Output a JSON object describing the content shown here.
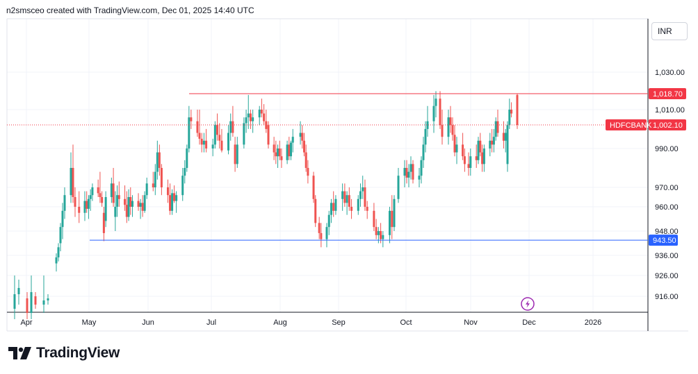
{
  "header": {
    "text": "n2smsceo created with TradingView.com, Dec 01, 2025 14:40 UTC"
  },
  "currency": "INR",
  "logo_text": "TradingView",
  "colors": {
    "up": "#26a69a",
    "down": "#ef5350",
    "resistance": "#f23645",
    "support": "#2962ff",
    "last_price": "#f23645",
    "grid": "#f0f3fa",
    "axis": "#131722"
  },
  "chart_data": {
    "type": "candlestick",
    "symbol": "HDFCBANK",
    "x_ticks": [
      "Apr",
      "May",
      "Jun",
      "Jul",
      "Aug",
      "Sep",
      "Oct",
      "Nov",
      "Dec",
      "2026"
    ],
    "y_ticks": [
      "1,030.00",
      "1,010.00",
      "990.00",
      "970.00",
      "960.00",
      "948.00",
      "936.00",
      "926.00",
      "916.00"
    ],
    "resistance": {
      "value": 1018.7,
      "label": "1,018.70"
    },
    "support": {
      "value": 943.5,
      "label": "943.50"
    },
    "last_price": {
      "value": 1002.1,
      "label": "1,002.10",
      "symbol_label": "HDFCBANK"
    },
    "candles": [
      {
        "t": "Apr 01",
        "o": 910,
        "h": 926,
        "l": 905,
        "c": 917
      },
      {
        "t": "Apr 03",
        "o": 917,
        "h": 924,
        "l": 912,
        "c": 920
      },
      {
        "t": "Apr 07",
        "o": 915,
        "h": 918,
        "l": 905,
        "c": 908
      },
      {
        "t": "Apr 09",
        "o": 908,
        "h": 926,
        "l": 905,
        "c": 918
      },
      {
        "t": "Apr 11",
        "o": 916,
        "h": 918,
        "l": 910,
        "c": 912
      },
      {
        "t": "Apr 15",
        "o": 912,
        "h": 926,
        "l": 908,
        "c": 914
      },
      {
        "t": "Apr 17",
        "o": 914,
        "h": 917,
        "l": 912,
        "c": 915
      },
      {
        "t": "Apr 21",
        "o": 932,
        "h": 937,
        "l": 928,
        "c": 935
      },
      {
        "t": "Apr 22",
        "o": 935,
        "h": 942,
        "l": 933,
        "c": 940
      },
      {
        "t": "Apr 23",
        "o": 942,
        "h": 952,
        "l": 938,
        "c": 950
      },
      {
        "t": "Apr 24",
        "o": 950,
        "h": 962,
        "l": 944,
        "c": 958
      },
      {
        "t": "Apr 25",
        "o": 958,
        "h": 970,
        "l": 954,
        "c": 966
      },
      {
        "t": "Apr 28",
        "o": 966,
        "h": 988,
        "l": 962,
        "c": 980
      },
      {
        "t": "Apr 29",
        "o": 980,
        "h": 992,
        "l": 962,
        "c": 965
      },
      {
        "t": "Apr 30",
        "o": 965,
        "h": 970,
        "l": 955,
        "c": 960
      },
      {
        "t": "May 02",
        "o": 960,
        "h": 968,
        "l": 952,
        "c": 957
      },
      {
        "t": "May 05",
        "o": 957,
        "h": 968,
        "l": 953,
        "c": 963
      },
      {
        "t": "May 06",
        "o": 963,
        "h": 968,
        "l": 957,
        "c": 959
      },
      {
        "t": "May 07",
        "o": 959,
        "h": 966,
        "l": 954,
        "c": 964
      },
      {
        "t": "May 08",
        "o": 964,
        "h": 969,
        "l": 958,
        "c": 966
      },
      {
        "t": "May 09",
        "o": 966,
        "h": 972,
        "l": 963,
        "c": 970
      },
      {
        "t": "May 12",
        "o": 970,
        "h": 974,
        "l": 965,
        "c": 967
      },
      {
        "t": "May 13",
        "o": 967,
        "h": 978,
        "l": 962,
        "c": 965
      },
      {
        "t": "May 14",
        "o": 965,
        "h": 968,
        "l": 960,
        "c": 962
      },
      {
        "t": "May 15",
        "o": 957,
        "h": 960,
        "l": 943,
        "c": 947
      },
      {
        "t": "May 16",
        "o": 953,
        "h": 968,
        "l": 950,
        "c": 965
      },
      {
        "t": "May 19",
        "o": 965,
        "h": 975,
        "l": 962,
        "c": 972
      },
      {
        "t": "May 20",
        "o": 972,
        "h": 980,
        "l": 960,
        "c": 962
      },
      {
        "t": "May 21",
        "o": 955,
        "h": 968,
        "l": 948,
        "c": 960
      },
      {
        "t": "May 22",
        "o": 960,
        "h": 971,
        "l": 955,
        "c": 966
      },
      {
        "t": "May 23",
        "o": 966,
        "h": 973,
        "l": 960,
        "c": 964
      },
      {
        "t": "May 26",
        "o": 964,
        "h": 971,
        "l": 958,
        "c": 961
      },
      {
        "t": "May 27",
        "o": 961,
        "h": 968,
        "l": 952,
        "c": 955
      },
      {
        "t": "May 28",
        "o": 955,
        "h": 969,
        "l": 953,
        "c": 965
      },
      {
        "t": "May 29",
        "o": 965,
        "h": 970,
        "l": 956,
        "c": 960
      },
      {
        "t": "May 30",
        "o": 960,
        "h": 966,
        "l": 955,
        "c": 963
      },
      {
        "t": "Jun 02",
        "o": 963,
        "h": 967,
        "l": 958,
        "c": 960
      },
      {
        "t": "Jun 03",
        "o": 960,
        "h": 964,
        "l": 954,
        "c": 962
      },
      {
        "t": "Jun 04",
        "o": 962,
        "h": 966,
        "l": 955,
        "c": 958
      },
      {
        "t": "Jun 05",
        "o": 958,
        "h": 968,
        "l": 957,
        "c": 966
      },
      {
        "t": "Jun 06",
        "o": 966,
        "h": 975,
        "l": 964,
        "c": 972
      },
      {
        "t": "Jun 09",
        "o": 972,
        "h": 978,
        "l": 968,
        "c": 970
      },
      {
        "t": "Jun 10",
        "o": 970,
        "h": 982,
        "l": 966,
        "c": 978
      },
      {
        "t": "Jun 11",
        "o": 978,
        "h": 994,
        "l": 974,
        "c": 988
      },
      {
        "t": "Jun 12",
        "o": 988,
        "h": 992,
        "l": 976,
        "c": 980
      },
      {
        "t": "Jun 13",
        "o": 980,
        "h": 982,
        "l": 966,
        "c": 970
      },
      {
        "t": "Jun 16",
        "o": 970,
        "h": 974,
        "l": 962,
        "c": 966
      },
      {
        "t": "Jun 17",
        "o": 966,
        "h": 972,
        "l": 956,
        "c": 958
      },
      {
        "t": "Jun 18",
        "o": 958,
        "h": 969,
        "l": 956,
        "c": 967
      },
      {
        "t": "Jun 19",
        "o": 967,
        "h": 971,
        "l": 962,
        "c": 963
      },
      {
        "t": "Jun 20",
        "o": 963,
        "h": 968,
        "l": 957,
        "c": 966
      },
      {
        "t": "Jun 23",
        "o": 966,
        "h": 980,
        "l": 963,
        "c": 976
      },
      {
        "t": "Jun 24",
        "o": 976,
        "h": 984,
        "l": 972,
        "c": 980
      },
      {
        "t": "Jun 25",
        "o": 980,
        "h": 992,
        "l": 978,
        "c": 990
      },
      {
        "t": "Jun 26",
        "o": 990,
        "h": 1012,
        "l": 988,
        "c": 1006
      },
      {
        "t": "Jun 27",
        "o": 1006,
        "h": 1010,
        "l": 1000,
        "c": 1004
      },
      {
        "t": "Jun 30",
        "o": 1004,
        "h": 1010,
        "l": 996,
        "c": 998
      },
      {
        "t": "Jul 01",
        "o": 998,
        "h": 1010,
        "l": 992,
        "c": 995
      },
      {
        "t": "Jul 02",
        "o": 995,
        "h": 998,
        "l": 988,
        "c": 992
      },
      {
        "t": "Jul 03",
        "o": 992,
        "h": 998,
        "l": 988,
        "c": 994
      },
      {
        "t": "Jul 04",
        "o": 994,
        "h": 1000,
        "l": 988,
        "c": 990
      },
      {
        "t": "Jul 07",
        "o": 990,
        "h": 995,
        "l": 986,
        "c": 992
      },
      {
        "t": "Jul 08",
        "o": 992,
        "h": 1004,
        "l": 990,
        "c": 1002
      },
      {
        "t": "Jul 09",
        "o": 1002,
        "h": 1008,
        "l": 994,
        "c": 997
      },
      {
        "t": "Jul 10",
        "o": 997,
        "h": 1003,
        "l": 990,
        "c": 994
      },
      {
        "t": "Jul 11",
        "o": 994,
        "h": 1000,
        "l": 988,
        "c": 989
      },
      {
        "t": "Jul 14",
        "o": 989,
        "h": 1002,
        "l": 987,
        "c": 998
      },
      {
        "t": "Jul 15",
        "o": 998,
        "h": 1008,
        "l": 994,
        "c": 1004
      },
      {
        "t": "Jul 16",
        "o": 1004,
        "h": 1012,
        "l": 996,
        "c": 998
      },
      {
        "t": "Jul 17",
        "o": 992,
        "h": 996,
        "l": 978,
        "c": 982
      },
      {
        "t": "Jul 18",
        "o": 982,
        "h": 996,
        "l": 980,
        "c": 992
      },
      {
        "t": "Jul 21",
        "o": 992,
        "h": 1006,
        "l": 990,
        "c": 1003
      },
      {
        "t": "Jul 22",
        "o": 1003,
        "h": 1010,
        "l": 998,
        "c": 1006
      },
      {
        "t": "Jul 23",
        "o": 1006,
        "h": 1018,
        "l": 1000,
        "c": 1008
      },
      {
        "t": "Jul 24",
        "o": 1008,
        "h": 1010,
        "l": 1000,
        "c": 1004
      },
      {
        "t": "Jul 25",
        "o": 1004,
        "h": 1010,
        "l": 998,
        "c": 1006
      },
      {
        "t": "Jul 28",
        "o": 1006,
        "h": 1012,
        "l": 1002,
        "c": 1010
      },
      {
        "t": "Jul 29",
        "o": 1010,
        "h": 1016,
        "l": 1006,
        "c": 1008
      },
      {
        "t": "Jul 30",
        "o": 1008,
        "h": 1013,
        "l": 1002,
        "c": 1004
      },
      {
        "t": "Jul 31",
        "o": 1004,
        "h": 1010,
        "l": 998,
        "c": 1000
      },
      {
        "t": "Aug 01",
        "o": 1002,
        "h": 1004,
        "l": 990,
        "c": 992
      },
      {
        "t": "Aug 04",
        "o": 992,
        "h": 996,
        "l": 984,
        "c": 988
      },
      {
        "t": "Aug 05",
        "o": 988,
        "h": 994,
        "l": 982,
        "c": 986
      },
      {
        "t": "Aug 06",
        "o": 986,
        "h": 992,
        "l": 980,
        "c": 990
      },
      {
        "t": "Aug 07",
        "o": 990,
        "h": 994,
        "l": 984,
        "c": 986
      },
      {
        "t": "Aug 08",
        "o": 986,
        "h": 990,
        "l": 980,
        "c": 984
      },
      {
        "t": "Aug 11",
        "o": 984,
        "h": 994,
        "l": 982,
        "c": 992
      },
      {
        "t": "Aug 12",
        "o": 992,
        "h": 996,
        "l": 984,
        "c": 986
      },
      {
        "t": "Aug 13",
        "o": 986,
        "h": 994,
        "l": 984,
        "c": 993
      },
      {
        "t": "Aug 14",
        "o": 993,
        "h": 1000,
        "l": 988,
        "c": 996
      },
      {
        "t": "Aug 18",
        "o": 996,
        "h": 1004,
        "l": 992,
        "c": 998
      },
      {
        "t": "Aug 19",
        "o": 998,
        "h": 1002,
        "l": 990,
        "c": 994
      },
      {
        "t": "Aug 20",
        "o": 994,
        "h": 998,
        "l": 986,
        "c": 988
      },
      {
        "t": "Aug 21",
        "o": 988,
        "h": 992,
        "l": 978,
        "c": 980
      },
      {
        "t": "Aug 22",
        "o": 980,
        "h": 984,
        "l": 972,
        "c": 976
      },
      {
        "t": "Aug 25",
        "o": 976,
        "h": 978,
        "l": 962,
        "c": 964
      },
      {
        "t": "Aug 26",
        "o": 964,
        "h": 966,
        "l": 950,
        "c": 952
      },
      {
        "t": "Aug 28",
        "o": 952,
        "h": 955,
        "l": 944,
        "c": 947
      },
      {
        "t": "Aug 29",
        "o": 947,
        "h": 952,
        "l": 940,
        "c": 944
      },
      {
        "t": "Sep 01",
        "o": 944,
        "h": 952,
        "l": 940,
        "c": 950
      },
      {
        "t": "Sep 02",
        "o": 950,
        "h": 958,
        "l": 946,
        "c": 956
      },
      {
        "t": "Sep 03",
        "o": 956,
        "h": 964,
        "l": 952,
        "c": 962
      },
      {
        "t": "Sep 04",
        "o": 962,
        "h": 968,
        "l": 955,
        "c": 958
      },
      {
        "t": "Sep 05",
        "o": 958,
        "h": 966,
        "l": 956,
        "c": 964
      },
      {
        "t": "Sep 08",
        "o": 964,
        "h": 972,
        "l": 958,
        "c": 968
      },
      {
        "t": "Sep 09",
        "o": 968,
        "h": 972,
        "l": 960,
        "c": 962
      },
      {
        "t": "Sep 10",
        "o": 962,
        "h": 968,
        "l": 956,
        "c": 966
      },
      {
        "t": "Sep 11",
        "o": 966,
        "h": 970,
        "l": 958,
        "c": 960
      },
      {
        "t": "Sep 12",
        "o": 960,
        "h": 964,
        "l": 954,
        "c": 958
      },
      {
        "t": "Sep 15",
        "o": 958,
        "h": 966,
        "l": 956,
        "c": 964
      },
      {
        "t": "Sep 16",
        "o": 964,
        "h": 972,
        "l": 960,
        "c": 968
      },
      {
        "t": "Sep 17",
        "o": 968,
        "h": 976,
        "l": 964,
        "c": 970
      },
      {
        "t": "Sep 18",
        "o": 970,
        "h": 974,
        "l": 958,
        "c": 960
      },
      {
        "t": "Sep 19",
        "o": 960,
        "h": 963,
        "l": 954,
        "c": 958
      },
      {
        "t": "Sep 22",
        "o": 958,
        "h": 962,
        "l": 948,
        "c": 950
      },
      {
        "t": "Sep 23",
        "o": 950,
        "h": 954,
        "l": 944,
        "c": 946
      },
      {
        "t": "Sep 24",
        "o": 946,
        "h": 950,
        "l": 942,
        "c": 948
      },
      {
        "t": "Sep 25",
        "o": 948,
        "h": 952,
        "l": 942,
        "c": 944
      },
      {
        "t": "Sep 26",
        "o": 944,
        "h": 948,
        "l": 940,
        "c": 946
      },
      {
        "t": "Sep 29",
        "o": 946,
        "h": 960,
        "l": 942,
        "c": 958
      },
      {
        "t": "Sep 30",
        "o": 958,
        "h": 966,
        "l": 944,
        "c": 950
      },
      {
        "t": "Oct 01",
        "o": 950,
        "h": 966,
        "l": 948,
        "c": 964
      },
      {
        "t": "Oct 03",
        "o": 964,
        "h": 980,
        "l": 962,
        "c": 976
      },
      {
        "t": "Oct 06",
        "o": 976,
        "h": 984,
        "l": 970,
        "c": 980
      },
      {
        "t": "Oct 07",
        "o": 980,
        "h": 984,
        "l": 972,
        "c": 975
      },
      {
        "t": "Oct 08",
        "o": 975,
        "h": 982,
        "l": 970,
        "c": 978
      },
      {
        "t": "Oct 09",
        "o": 978,
        "h": 986,
        "l": 974,
        "c": 982
      },
      {
        "t": "Oct 10",
        "o": 982,
        "h": 984,
        "l": 972,
        "c": 974
      },
      {
        "t": "Oct 13",
        "o": 974,
        "h": 980,
        "l": 970,
        "c": 976
      },
      {
        "t": "Oct 14",
        "o": 976,
        "h": 986,
        "l": 972,
        "c": 984
      },
      {
        "t": "Oct 15",
        "o": 984,
        "h": 996,
        "l": 980,
        "c": 992
      },
      {
        "t": "Oct 16",
        "o": 992,
        "h": 1004,
        "l": 988,
        "c": 1000
      },
      {
        "t": "Oct 17",
        "o": 1000,
        "h": 1012,
        "l": 996,
        "c": 1004
      },
      {
        "t": "Oct 20",
        "o": 1004,
        "h": 1018,
        "l": 998,
        "c": 1012
      },
      {
        "t": "Oct 21",
        "o": 1012,
        "h": 1020,
        "l": 1006,
        "c": 1016
      },
      {
        "t": "Oct 23",
        "o": 1016,
        "h": 1020,
        "l": 1000,
        "c": 1002
      },
      {
        "t": "Oct 24",
        "o": 1002,
        "h": 1010,
        "l": 992,
        "c": 996
      },
      {
        "t": "Oct 27",
        "o": 996,
        "h": 1010,
        "l": 992,
        "c": 1006
      },
      {
        "t": "Oct 28",
        "o": 1006,
        "h": 1012,
        "l": 998,
        "c": 1002
      },
      {
        "t": "Oct 29",
        "o": 1002,
        "h": 1006,
        "l": 994,
        "c": 997
      },
      {
        "t": "Oct 30",
        "o": 997,
        "h": 1002,
        "l": 986,
        "c": 988
      },
      {
        "t": "Oct 31",
        "o": 988,
        "h": 996,
        "l": 982,
        "c": 992
      },
      {
        "t": "Nov 03",
        "o": 992,
        "h": 998,
        "l": 984,
        "c": 986
      },
      {
        "t": "Nov 04",
        "o": 986,
        "h": 990,
        "l": 978,
        "c": 982
      },
      {
        "t": "Nov 06",
        "o": 982,
        "h": 988,
        "l": 976,
        "c": 980
      },
      {
        "t": "Nov 07",
        "o": 980,
        "h": 990,
        "l": 976,
        "c": 986
      },
      {
        "t": "Nov 10",
        "o": 986,
        "h": 992,
        "l": 980,
        "c": 984
      },
      {
        "t": "Nov 11",
        "o": 984,
        "h": 996,
        "l": 982,
        "c": 994
      },
      {
        "t": "Nov 12",
        "o": 994,
        "h": 998,
        "l": 986,
        "c": 988
      },
      {
        "t": "Nov 13",
        "o": 988,
        "h": 992,
        "l": 978,
        "c": 982
      },
      {
        "t": "Nov 14",
        "o": 982,
        "h": 992,
        "l": 978,
        "c": 990
      },
      {
        "t": "Nov 17",
        "o": 990,
        "h": 998,
        "l": 986,
        "c": 994
      },
      {
        "t": "Nov 18",
        "o": 994,
        "h": 1000,
        "l": 988,
        "c": 992
      },
      {
        "t": "Nov 19",
        "o": 992,
        "h": 1000,
        "l": 988,
        "c": 996
      },
      {
        "t": "Nov 20",
        "o": 996,
        "h": 1006,
        "l": 994,
        "c": 1004
      },
      {
        "t": "Nov 21",
        "o": 1004,
        "h": 1010,
        "l": 996,
        "c": 998
      },
      {
        "t": "Nov 24",
        "o": 998,
        "h": 1004,
        "l": 990,
        "c": 994
      },
      {
        "t": "Nov 25",
        "o": 994,
        "h": 1000,
        "l": 988,
        "c": 998
      },
      {
        "t": "Nov 26",
        "o": 982,
        "h": 1004,
        "l": 978,
        "c": 1002
      },
      {
        "t": "Nov 27",
        "o": 1002,
        "h": 1016,
        "l": 1000,
        "c": 1010
      },
      {
        "t": "Nov 28",
        "o": 1010,
        "h": 1014,
        "l": 1006,
        "c": 1008
      },
      {
        "t": "Dec 01",
        "o": 1018,
        "h": 1018.7,
        "l": 1000,
        "c": 1002.1
      }
    ]
  }
}
